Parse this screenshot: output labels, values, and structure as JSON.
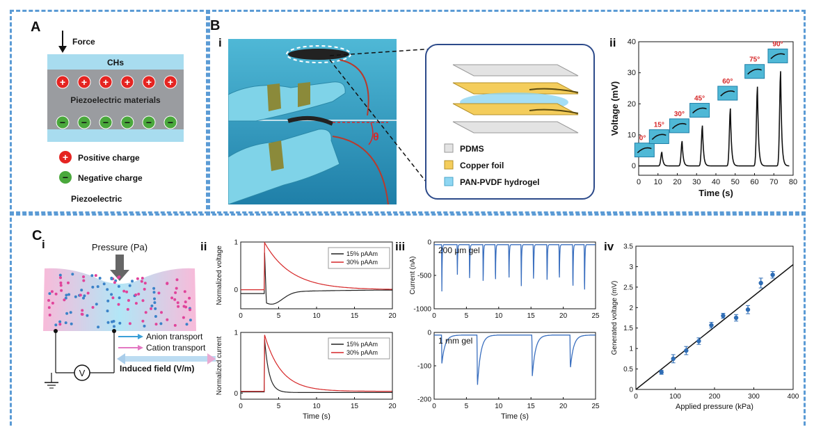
{
  "panel_a": {
    "letter": "A",
    "force": "Force",
    "top_layer": "CHs",
    "middle_layer": "Piezoelectric materials",
    "positive_symbol": "+",
    "negative_symbol": "−",
    "legend_positive": "Positive charge",
    "legend_negative": "Negative charge",
    "caption": "Piezoelectric"
  },
  "panel_b": {
    "letter": "B",
    "sub_i": "i",
    "sub_ii": "ii",
    "theta": "θ",
    "legend": [
      "PDMS",
      "Copper foil",
      "PAN-PVDF hydrogel"
    ],
    "angles": [
      "0°",
      "15°",
      "30°",
      "45°",
      "60°",
      "75°",
      "90°"
    ]
  },
  "panel_c": {
    "letter": "C",
    "sub_i": "i",
    "sub_ii": "ii",
    "sub_iii": "iii",
    "sub_iv": "iv",
    "pressure_label": "Pressure (Pa)",
    "anion": "Anion transport",
    "cation": "Cation transport",
    "field": "Induced field (V/m)",
    "voltmeter": "V",
    "gel_200": "200 μm gel",
    "gel_1mm": "1 mm gel"
  },
  "chart_data": [
    {
      "id": "B-ii",
      "type": "line",
      "xlabel": "Time (s)",
      "ylabel": "Voltage (mV)",
      "xlim": [
        0,
        80
      ],
      "ylim": [
        -3,
        40
      ],
      "xticks": [
        0,
        10,
        20,
        30,
        40,
        50,
        60,
        70,
        80
      ],
      "yticks": [
        0,
        10,
        20,
        30,
        40
      ],
      "peaks": [
        {
          "time": 12,
          "voltage": 4.5,
          "angle": "15°"
        },
        {
          "time": 22.5,
          "voltage": 8,
          "angle": "30°"
        },
        {
          "time": 33,
          "voltage": 13,
          "angle": "45°"
        },
        {
          "time": 47.5,
          "voltage": 18.5,
          "angle": "60°"
        },
        {
          "time": 61.5,
          "voltage": 25.5,
          "angle": "75°"
        },
        {
          "time": 73.5,
          "voltage": 30.5,
          "angle": "90°"
        }
      ],
      "baseline_angle": "0°",
      "color": "#111111"
    },
    {
      "id": "C-ii-top",
      "type": "line",
      "xlabel": "",
      "ylabel": "Normalized voltage",
      "xlim": [
        0,
        20
      ],
      "ylim": [
        -0.4,
        1
      ],
      "xticks": [
        0,
        5,
        10,
        15,
        20
      ],
      "yticks": [
        0,
        1
      ],
      "series": [
        {
          "name": "15% pAAm",
          "color": "#222222",
          "pulse_time": 3.1,
          "pre": -0.08,
          "undershoot": -0.25,
          "recovery": -0.05
        },
        {
          "name": "30% pAAm",
          "color": "#d62728",
          "pulse_time": 3.1,
          "pre": 0.0,
          "decay_tail": 0.0
        }
      ]
    },
    {
      "id": "C-ii-bottom",
      "type": "line",
      "xlabel": "Time (s)",
      "ylabel": "Normalized current",
      "xlim": [
        0,
        20
      ],
      "ylim": [
        -0.1,
        1
      ],
      "xticks": [
        0,
        5,
        10,
        15,
        20
      ],
      "yticks": [
        0,
        1
      ],
      "series": [
        {
          "name": "15% pAAm",
          "color": "#222222",
          "pulse_time": 3.1
        },
        {
          "name": "30% pAAm",
          "color": "#d62728",
          "pulse_time": 3.1
        }
      ]
    },
    {
      "id": "C-iii-top",
      "type": "line",
      "xlabel": "",
      "ylabel": "Current (nA)",
      "xlim": [
        0,
        25
      ],
      "ylim": [
        -1000,
        0
      ],
      "xticks": [
        0,
        5,
        10,
        15,
        20,
        25
      ],
      "yticks": [
        -1000,
        -500,
        0
      ],
      "annotation": "200 μm gel",
      "spikes": [
        {
          "time": 1.2,
          "value": -700
        },
        {
          "time": 3.6,
          "value": -450
        },
        {
          "time": 5.5,
          "value": -600
        },
        {
          "time": 7.6,
          "value": -650
        },
        {
          "time": 9.5,
          "value": -630
        },
        {
          "time": 11.6,
          "value": -600
        },
        {
          "time": 13.5,
          "value": -620
        },
        {
          "time": 15.4,
          "value": -610
        },
        {
          "time": 17.5,
          "value": -630
        },
        {
          "time": 19.4,
          "value": -600
        },
        {
          "time": 21.5,
          "value": -750
        },
        {
          "time": 23.3,
          "value": -820
        }
      ],
      "color": "#3a6fbf"
    },
    {
      "id": "C-iii-bottom",
      "type": "line",
      "xlabel": "Time (s)",
      "ylabel": "",
      "xlim": [
        0,
        25
      ],
      "ylim": [
        -200,
        0
      ],
      "xticks": [
        0,
        5,
        10,
        15,
        20,
        25
      ],
      "yticks": [
        -200,
        -100,
        0
      ],
      "annotation": "1 mm gel",
      "spikes": [
        {
          "time": 1.2,
          "value": -85
        },
        {
          "time": 6.7,
          "value": -155
        },
        {
          "time": 15.2,
          "value": -125
        },
        {
          "time": 21.1,
          "value": -100
        }
      ],
      "color": "#3a6fbf"
    },
    {
      "id": "C-iv",
      "type": "scatter",
      "xlabel": "Applied pressure (kPa)",
      "ylabel": "Generated voltage (mV)",
      "xlim": [
        0,
        400
      ],
      "ylim": [
        0,
        3.5
      ],
      "xticks": [
        0,
        100,
        200,
        300,
        400
      ],
      "yticks": [
        0,
        0.5,
        1,
        1.5,
        2,
        2.5,
        3,
        3.5
      ],
      "x": [
        65,
        95,
        128,
        160,
        192,
        222,
        255,
        285,
        318,
        348
      ],
      "y": [
        0.42,
        0.75,
        0.95,
        1.18,
        1.57,
        1.8,
        1.75,
        1.95,
        2.6,
        2.8
      ],
      "err": [
        0.05,
        0.1,
        0.1,
        0.08,
        0.07,
        0.06,
        0.08,
        0.1,
        0.12,
        0.08
      ],
      "fit": {
        "x": [
          0,
          400
        ],
        "y": [
          0,
          3.05
        ]
      },
      "point_color": "#2f6db5",
      "fit_color": "#111111"
    }
  ]
}
